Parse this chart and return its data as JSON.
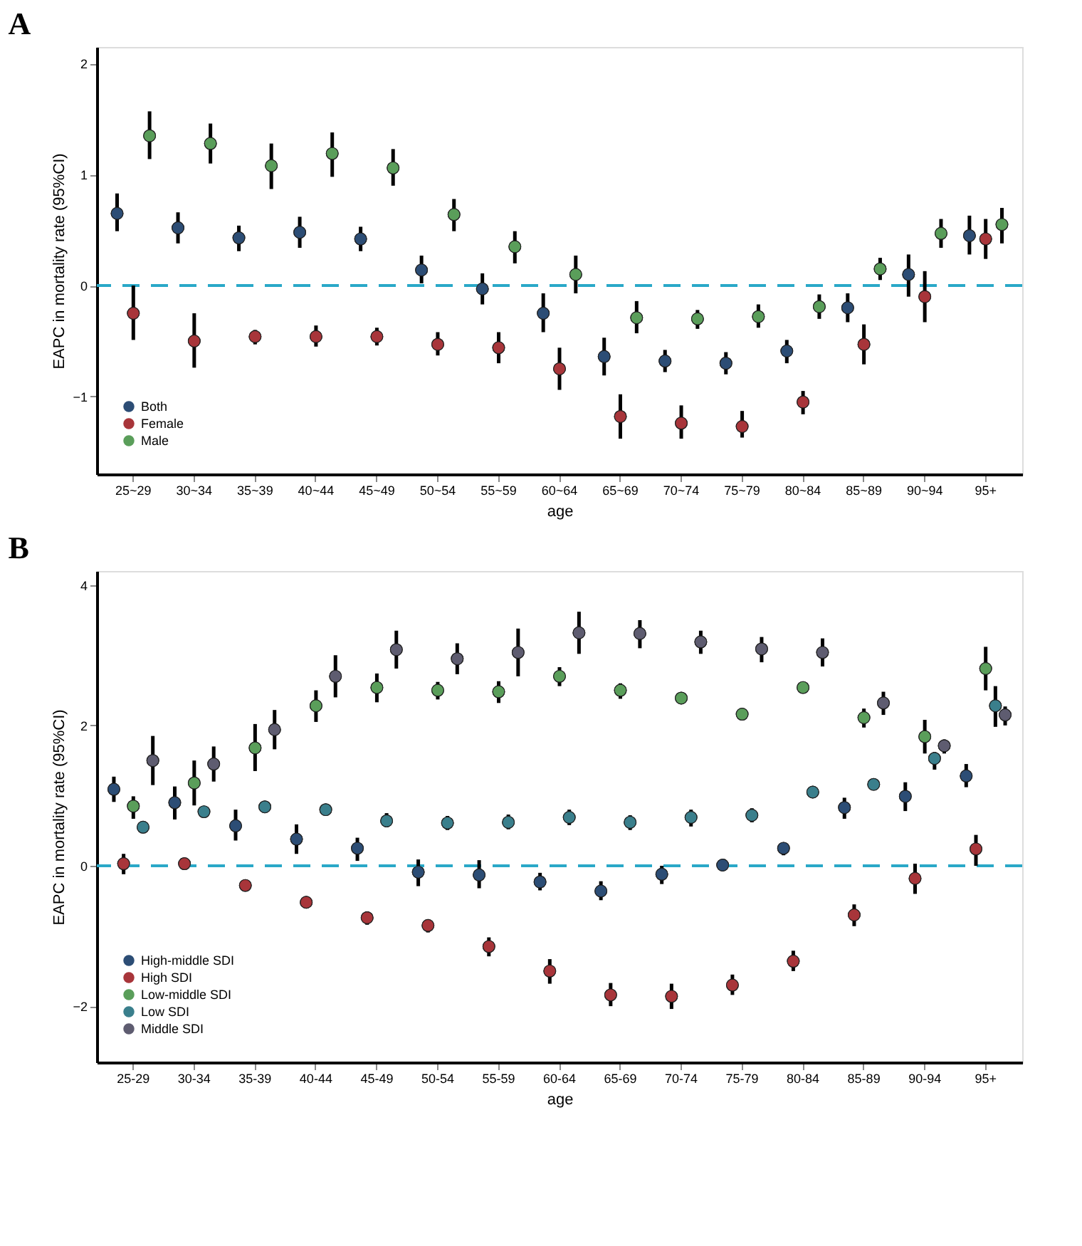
{
  "chart_data": [
    {
      "type": "scatter",
      "title": "A",
      "xlabel": "age",
      "ylabel": "EAPC in mortality rate (95%CI)",
      "categories": [
        "25~29",
        "30~34",
        "35~39",
        "40~44",
        "45~49",
        "50~54",
        "55~59",
        "60~64",
        "65~69",
        "70~74",
        "75~79",
        "80~84",
        "85~89",
        "90~94",
        "95+"
      ],
      "ylim": [
        -1.7,
        2.15
      ],
      "yticks": [
        -1,
        0,
        1,
        2
      ],
      "grid": false,
      "legend": "bottom left",
      "marker": "circle",
      "ref_lines": [
        {
          "axis": "y",
          "value": 0,
          "color": "#2aa8c8",
          "line_style": "dashed"
        }
      ],
      "series": [
        {
          "name": "Both",
          "color": "#2c4d75",
          "values": [
            0.65,
            0.52,
            0.43,
            0.48,
            0.42,
            0.14,
            -0.03,
            -0.25,
            -0.64,
            -0.68,
            -0.7,
            -0.59,
            -0.2,
            0.1,
            0.45
          ],
          "errors": [
            [
              0.49,
              0.83
            ],
            [
              0.38,
              0.66
            ],
            [
              0.31,
              0.54
            ],
            [
              0.34,
              0.62
            ],
            [
              0.31,
              0.53
            ],
            [
              0.02,
              0.27
            ],
            [
              -0.17,
              0.11
            ],
            [
              -0.42,
              -0.07
            ],
            [
              -0.81,
              -0.47
            ],
            [
              -0.78,
              -0.58
            ],
            [
              -0.8,
              -0.6
            ],
            [
              -0.7,
              -0.49
            ],
            [
              -0.33,
              -0.07
            ],
            [
              -0.1,
              0.28
            ],
            [
              0.28,
              0.63
            ]
          ]
        },
        {
          "name": "Female",
          "color": "#a8353a",
          "values": [
            -0.25,
            -0.5,
            -0.46,
            -0.46,
            -0.46,
            -0.53,
            -0.56,
            -0.75,
            -1.18,
            -1.24,
            -1.27,
            -1.05,
            -0.53,
            -0.1,
            0.42
          ],
          "errors": [
            [
              -0.49,
              0
            ],
            [
              -0.74,
              -0.25
            ],
            [
              -0.53,
              -0.4
            ],
            [
              -0.55,
              -0.36
            ],
            [
              -0.54,
              -0.38
            ],
            [
              -0.63,
              -0.42
            ],
            [
              -0.7,
              -0.42
            ],
            [
              -0.94,
              -0.56
            ],
            [
              -1.38,
              -0.98
            ],
            [
              -1.38,
              -1.08
            ],
            [
              -1.37,
              -1.13
            ],
            [
              -1.16,
              -0.95
            ],
            [
              -0.71,
              -0.35
            ],
            [
              -0.33,
              0.13
            ],
            [
              0.24,
              0.6
            ]
          ]
        },
        {
          "name": "Male",
          "color": "#5a9e5a",
          "values": [
            1.35,
            1.28,
            1.08,
            1.19,
            1.06,
            0.64,
            0.35,
            0.1,
            -0.29,
            -0.3,
            -0.28,
            -0.19,
            0.15,
            0.47,
            0.55
          ],
          "errors": [
            [
              1.14,
              1.57
            ],
            [
              1.1,
              1.46
            ],
            [
              0.87,
              1.28
            ],
            [
              0.98,
              1.38
            ],
            [
              0.9,
              1.23
            ],
            [
              0.49,
              0.78
            ],
            [
              0.2,
              0.49
            ],
            [
              -0.07,
              0.27
            ],
            [
              -0.43,
              -0.14
            ],
            [
              -0.39,
              -0.22
            ],
            [
              -0.38,
              -0.17
            ],
            [
              -0.3,
              -0.08
            ],
            [
              0.05,
              0.25
            ],
            [
              0.34,
              0.6
            ],
            [
              0.38,
              0.7
            ]
          ]
        }
      ]
    },
    {
      "type": "scatter",
      "title": "B",
      "xlabel": "age",
      "ylabel": "EAPC in mortality rate (95%CI)",
      "categories": [
        "25-29",
        "30-34",
        "35-39",
        "40-44",
        "45-49",
        "50-54",
        "55-59",
        "60-64",
        "65-69",
        "70-74",
        "75-79",
        "80-84",
        "85-89",
        "90-94",
        "95+"
      ],
      "ylim": [
        -2.8,
        4.2
      ],
      "yticks": [
        -2,
        0,
        2,
        4
      ],
      "grid": false,
      "legend": "bottom left",
      "marker": "circle",
      "ref_lines": [
        {
          "axis": "y",
          "value": 0,
          "color": "#2aa8c8",
          "line_style": "dashed"
        }
      ],
      "series": [
        {
          "name": "High-middle SDI",
          "color": "#2c4d75",
          "values": [
            1.09,
            0.9,
            0.57,
            0.38,
            0.25,
            -0.09,
            -0.13,
            -0.23,
            -0.36,
            -0.12,
            0.01,
            0.25,
            0.83,
            0.99,
            1.28
          ],
          "errors": [
            [
              0.91,
              1.27
            ],
            [
              0.66,
              1.13
            ],
            [
              0.36,
              0.8
            ],
            [
              0.17,
              0.59
            ],
            [
              0.07,
              0.4
            ],
            [
              -0.29,
              0.09
            ],
            [
              -0.32,
              0.08
            ],
            [
              -0.35,
              -0.1
            ],
            [
              -0.49,
              -0.22
            ],
            [
              -0.26,
              0.0
            ],
            [
              -0.05,
              0.07
            ],
            [
              0.15,
              0.33
            ],
            [
              0.67,
              0.97
            ],
            [
              0.78,
              1.19
            ],
            [
              1.12,
              1.45
            ]
          ]
        },
        {
          "name": "High SDI",
          "color": "#a8353a",
          "values": [
            0.03,
            0.03,
            -0.28,
            -0.52,
            -0.74,
            -0.85,
            -1.15,
            -1.5,
            -1.84,
            -1.86,
            -1.7,
            -1.36,
            -0.7,
            -0.18,
            0.24
          ],
          "errors": [
            [
              -0.12,
              0.17
            ],
            [
              -0.03,
              0.1
            ],
            [
              -0.36,
              -0.22
            ],
            [
              -0.56,
              -0.48
            ],
            [
              -0.84,
              -0.65
            ],
            [
              -0.95,
              -0.77
            ],
            [
              -1.29,
              -1.02
            ],
            [
              -1.68,
              -1.33
            ],
            [
              -2.0,
              -1.67
            ],
            [
              -2.04,
              -1.68
            ],
            [
              -1.84,
              -1.55
            ],
            [
              -1.5,
              -1.21
            ],
            [
              -0.86,
              -0.55
            ],
            [
              -0.4,
              0.03
            ],
            [
              0.0,
              0.44
            ]
          ]
        },
        {
          "name": "Low-middle SDI",
          "color": "#5a9e5a",
          "values": [
            0.85,
            1.18,
            1.68,
            2.28,
            2.54,
            2.5,
            2.48,
            2.7,
            2.5,
            2.39,
            2.16,
            2.54,
            2.11,
            1.84,
            2.81
          ],
          "errors": [
            [
              0.67,
              0.99
            ],
            [
              0.86,
              1.5
            ],
            [
              1.35,
              2.02
            ],
            [
              2.05,
              2.5
            ],
            [
              2.33,
              2.74
            ],
            [
              2.37,
              2.62
            ],
            [
              2.32,
              2.63
            ],
            [
              2.56,
              2.83
            ],
            [
              2.38,
              2.6
            ],
            [
              2.33,
              2.45
            ],
            [
              2.08,
              2.23
            ],
            [
              2.46,
              2.62
            ],
            [
              1.97,
              2.24
            ],
            [
              1.6,
              2.08
            ],
            [
              2.5,
              3.12
            ]
          ]
        },
        {
          "name": "Low SDI",
          "color": "#3a7f8c",
          "values": [
            0.55,
            0.77,
            0.84,
            0.8,
            0.64,
            0.61,
            0.62,
            0.69,
            0.62,
            0.69,
            0.72,
            1.05,
            1.16,
            1.53,
            2.28
          ],
          "errors": [
            [
              0.51,
              0.59
            ],
            [
              0.73,
              0.81
            ],
            [
              0.78,
              0.9
            ],
            [
              0.74,
              0.88
            ],
            [
              0.55,
              0.75
            ],
            [
              0.51,
              0.71
            ],
            [
              0.52,
              0.73
            ],
            [
              0.58,
              0.8
            ],
            [
              0.51,
              0.72
            ],
            [
              0.56,
              0.8
            ],
            [
              0.62,
              0.82
            ],
            [
              0.97,
              1.12
            ],
            [
              1.1,
              1.21
            ],
            [
              1.37,
              1.62
            ],
            [
              1.98,
              2.56
            ]
          ]
        },
        {
          "name": "Middle SDI",
          "color": "#5e5c70",
          "values": [
            1.5,
            1.45,
            1.94,
            2.7,
            3.08,
            2.95,
            3.04,
            3.32,
            3.31,
            3.19,
            3.09,
            3.04,
            2.32,
            1.71,
            2.15
          ],
          "errors": [
            [
              1.15,
              1.85
            ],
            [
              1.2,
              1.7
            ],
            [
              1.66,
              2.22
            ],
            [
              2.4,
              3.0
            ],
            [
              2.81,
              3.35
            ],
            [
              2.73,
              3.17
            ],
            [
              2.7,
              3.38
            ],
            [
              3.02,
              3.62
            ],
            [
              3.1,
              3.5
            ],
            [
              3.02,
              3.35
            ],
            [
              2.9,
              3.26
            ],
            [
              2.84,
              3.24
            ],
            [
              2.15,
              2.48
            ],
            [
              1.6,
              1.8
            ],
            [
              2.0,
              2.27
            ]
          ]
        }
      ]
    }
  ]
}
